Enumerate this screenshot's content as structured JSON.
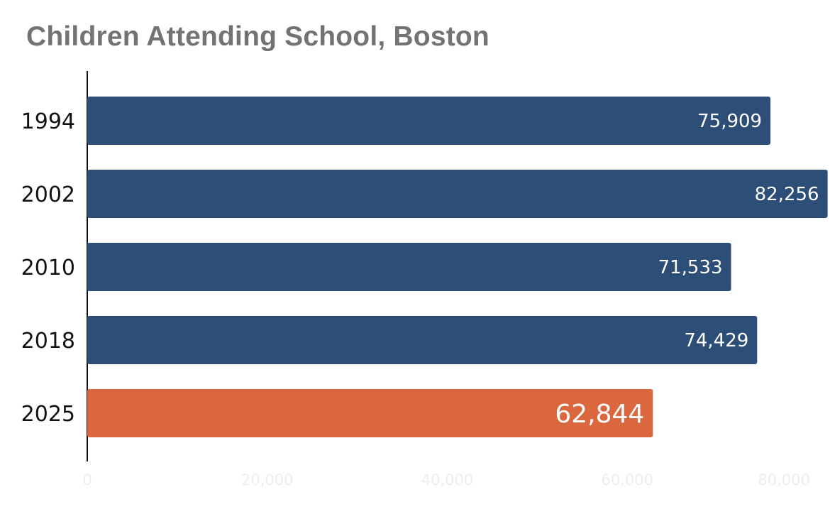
{
  "chart_data": {
    "type": "bar",
    "orientation": "horizontal",
    "title": "Children Attending School, Boston",
    "categories": [
      "1994",
      "2002",
      "2010",
      "2018",
      "2025"
    ],
    "values": [
      75909,
      82256,
      71533,
      74429,
      62844
    ],
    "value_labels": [
      "75,909",
      "82,256",
      "71,533",
      "74,429",
      "62,844"
    ],
    "bar_colors": [
      "#2d4e76",
      "#2d4e76",
      "#2d4e76",
      "#2d4e76",
      "#db673f"
    ],
    "highlight_index": 4,
    "xlim": [
      0,
      80000
    ],
    "x_ticks": [
      0,
      20000,
      40000,
      60000,
      80000
    ],
    "x_tick_labels": [
      "0",
      "20,000",
      "40,000",
      "60,000",
      "80,000"
    ],
    "xlabel": "",
    "ylabel": "",
    "grid": false,
    "legend": "none"
  }
}
